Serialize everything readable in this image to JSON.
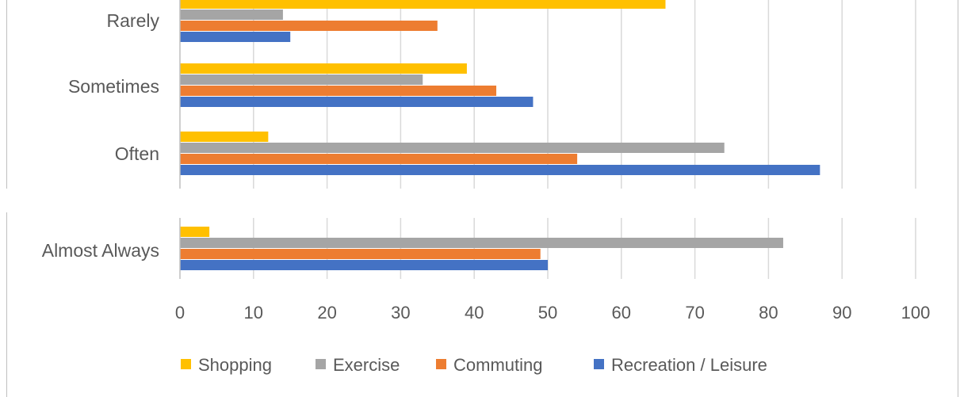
{
  "chart_data": {
    "type": "bar",
    "orientation": "horizontal",
    "title": "",
    "xlabel": "",
    "ylabel": "",
    "categories": [
      "Rarely",
      "Sometimes",
      "Often",
      "Almost Always"
    ],
    "xlim": [
      0,
      100
    ],
    "x_ticks": [
      0,
      10,
      20,
      30,
      40,
      50,
      60,
      70,
      80,
      90,
      100
    ],
    "grid": true,
    "legend_position": "bottom",
    "series": [
      {
        "name": "Shopping",
        "color": "#FFC000",
        "values": [
          66,
          39,
          12,
          4
        ]
      },
      {
        "name": "Exercise",
        "color": "#A5A5A5",
        "values": [
          14,
          33,
          74,
          82
        ]
      },
      {
        "name": "Commuting",
        "color": "#ED7D31",
        "values": [
          35,
          43,
          54,
          49
        ]
      },
      {
        "name": "Recreation / Leisure",
        "color": "#4472C4",
        "values": [
          15,
          48,
          87,
          50
        ]
      }
    ]
  }
}
